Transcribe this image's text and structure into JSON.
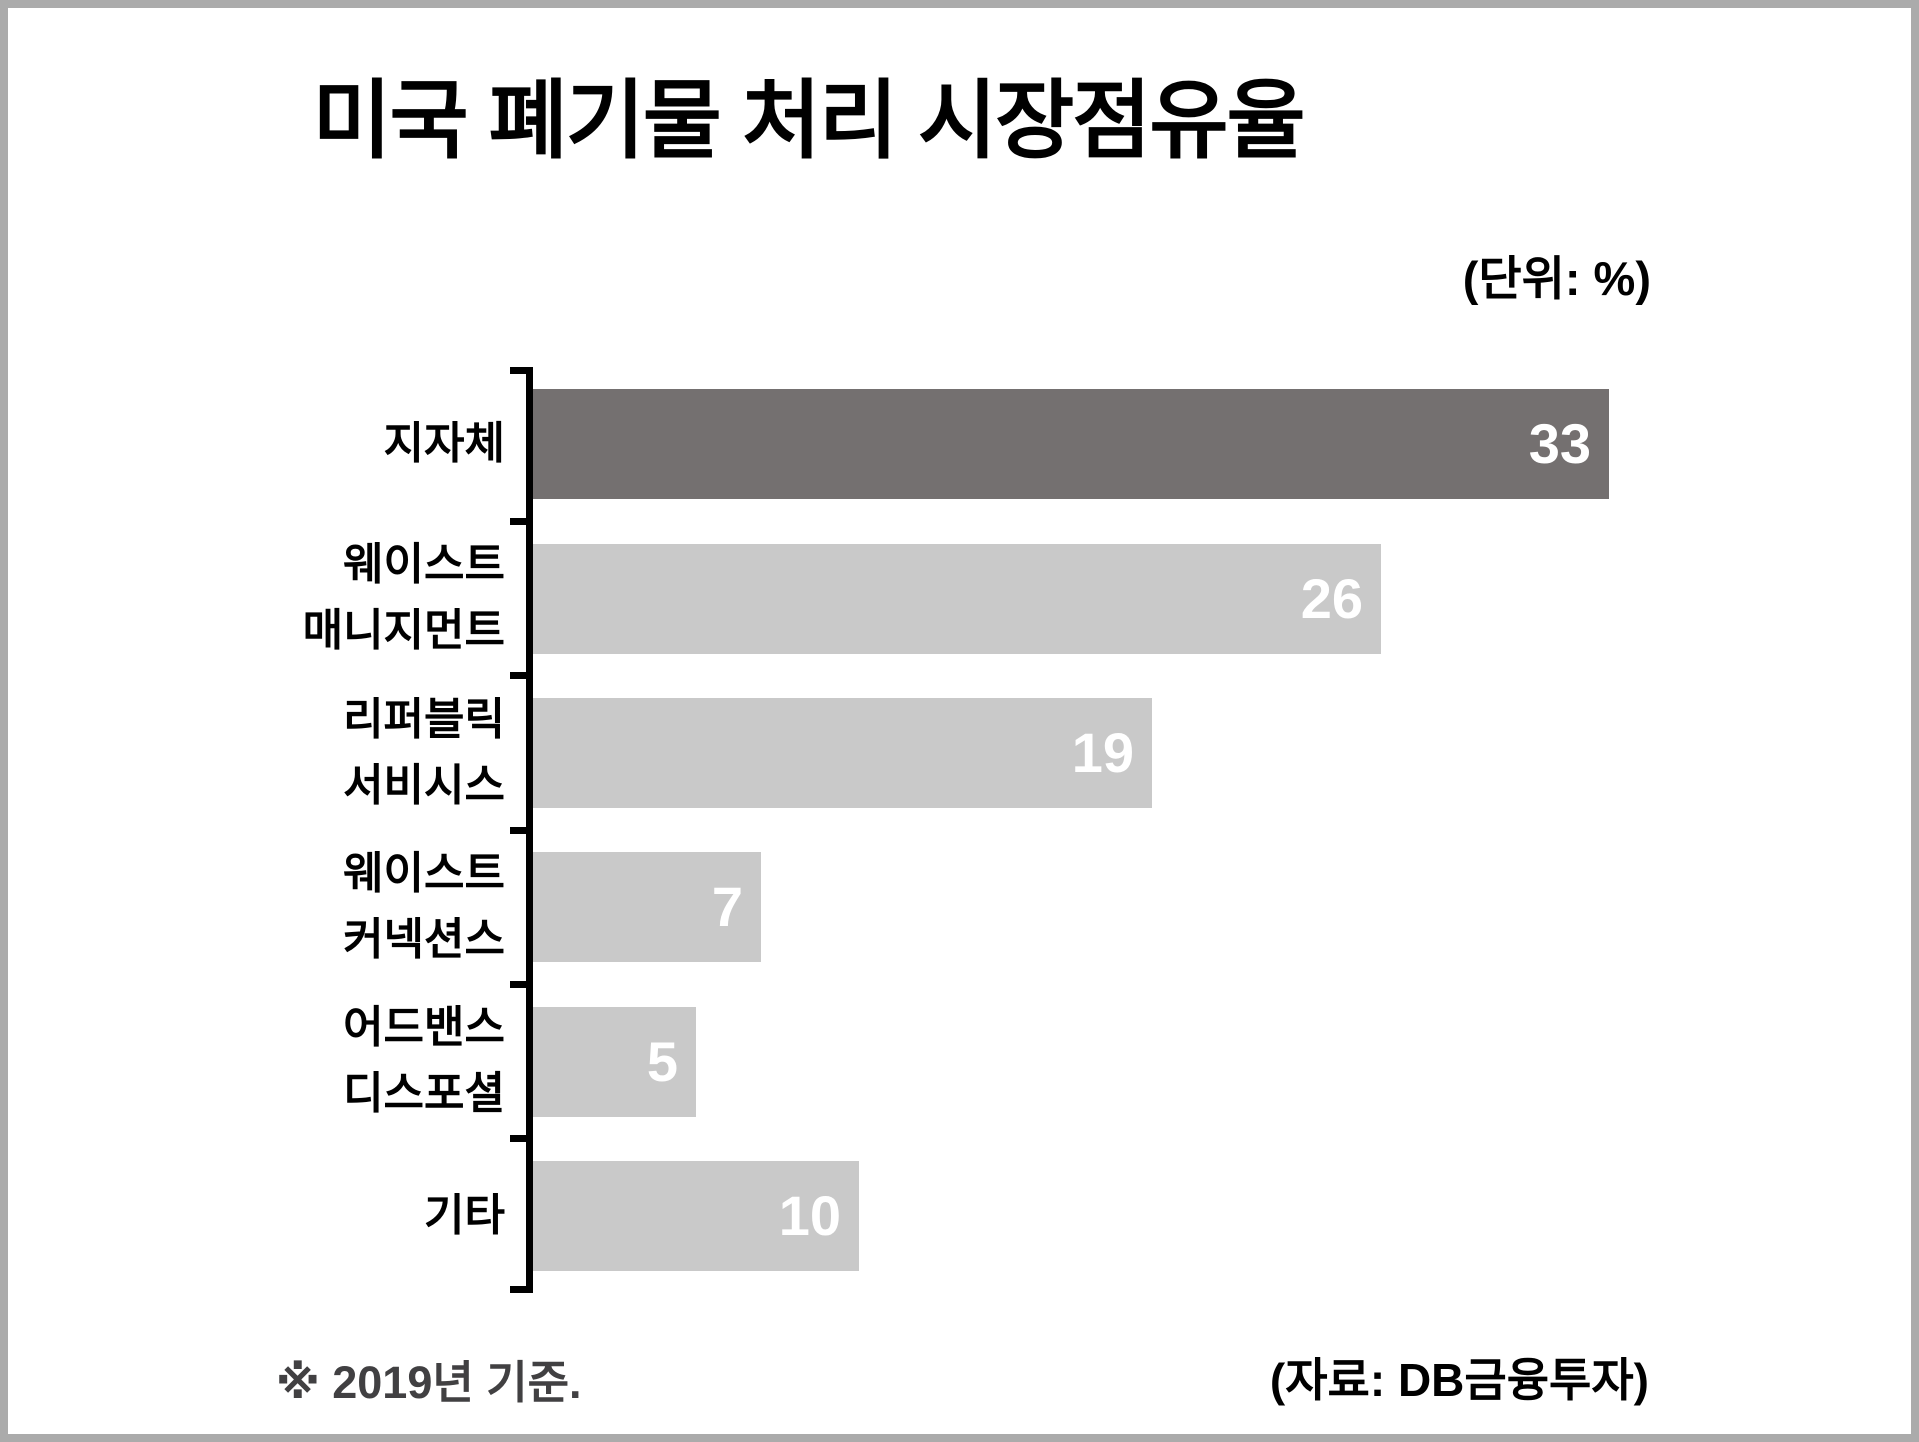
{
  "page": {
    "title": "미국 폐기물 처리 시장점유율",
    "unit_label": "(단위: %)",
    "footnote": "※ 2019년 기준.",
    "source": "(자료: DB금융투자)"
  },
  "colors": {
    "highlight_bar": "#747070",
    "bar": "#c9c9c9",
    "value_label": "#ffffff",
    "frame_border": "#ababab",
    "axis": "#000000",
    "footnote_text": "#414042"
  },
  "chart_data": {
    "type": "bar",
    "orientation": "horizontal",
    "title": "미국 폐기물 처리 시장점유율",
    "unit": "%",
    "categories": [
      "지자체",
      "웨이스트\n매니지먼트",
      "리퍼블릭\n서비시스",
      "웨이스트\n커넥션스",
      "어드밴스\n디스포셜",
      "기타"
    ],
    "values": [
      33,
      26,
      19,
      7,
      5,
      10
    ],
    "highlighted_index": 0,
    "value_labels_inside_bars": true,
    "xlim": [
      0,
      34.5
    ],
    "grid": false,
    "legend": false
  }
}
